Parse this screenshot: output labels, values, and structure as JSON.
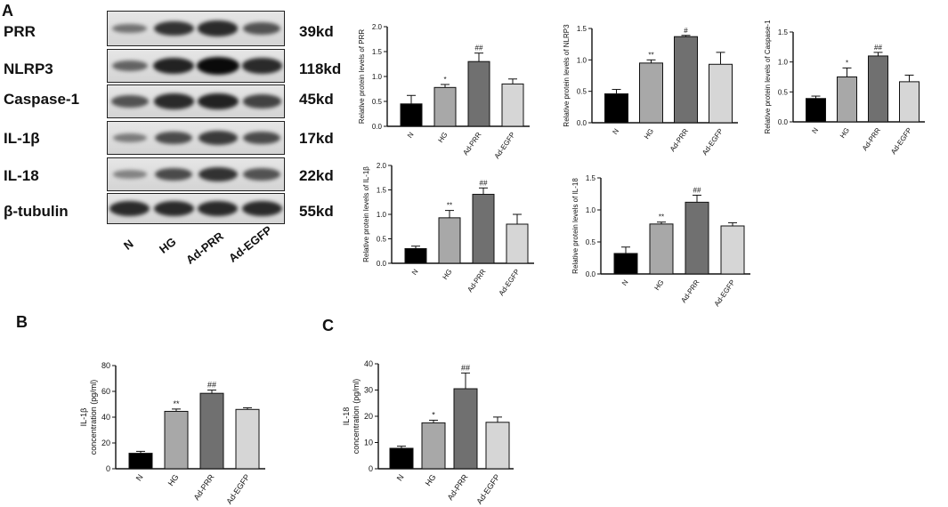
{
  "panels": {
    "a": "A",
    "b": "B",
    "c": "C"
  },
  "western_blot": {
    "proteins": [
      {
        "name": "PRR",
        "kd": "39kd",
        "bands": [
          0.35,
          0.75,
          0.8,
          0.55
        ]
      },
      {
        "name": "NLRP3",
        "kd": "118kd",
        "bands": [
          0.45,
          0.85,
          1.0,
          0.8
        ]
      },
      {
        "name": "Caspase-1",
        "kd": "45kd",
        "bands": [
          0.55,
          0.8,
          0.85,
          0.65
        ]
      },
      {
        "name": "IL-1β",
        "kd": "17kd",
        "bands": [
          0.3,
          0.6,
          0.7,
          0.6
        ]
      },
      {
        "name": "IL-18",
        "kd": "22kd",
        "bands": [
          0.25,
          0.6,
          0.75,
          0.55
        ]
      },
      {
        "name": "β-tubulin",
        "kd": "55kd",
        "bands": [
          0.8,
          0.8,
          0.8,
          0.8
        ]
      }
    ],
    "lanes": [
      "N",
      "HG",
      "Ad-PRR",
      "Ad-EGFP"
    ]
  },
  "colors": {
    "N": "#000000",
    "HG": "#a8a8a8",
    "Ad-PRR": "#707070",
    "Ad-EGFP": "#d6d6d6"
  },
  "chart_data": [
    {
      "id": "prr",
      "type": "bar",
      "categories": [
        "N",
        "HG",
        "Ad-PRR",
        "Ad-EGFP"
      ],
      "values": [
        0.45,
        0.78,
        1.3,
        0.85
      ],
      "errors": [
        0.17,
        0.06,
        0.17,
        0.1
      ],
      "annotations": [
        "",
        "*",
        "##",
        ""
      ],
      "ylabel": "Relative protein levels of PRR",
      "ylim": [
        0,
        2.0
      ],
      "yticks": [
        0.0,
        0.5,
        1.0,
        1.5,
        2.0
      ],
      "ytick_labels": [
        "0.0",
        "0.5",
        "1.0",
        "1.5",
        "2.0"
      ]
    },
    {
      "id": "nlrp3",
      "type": "bar",
      "categories": [
        "N",
        "HG",
        "Ad-PRR",
        "Ad-EGFP"
      ],
      "values": [
        0.46,
        0.95,
        1.37,
        0.93
      ],
      "errors": [
        0.07,
        0.05,
        0.02,
        0.19
      ],
      "annotations": [
        "",
        "**",
        "#",
        ""
      ],
      "ylabel": "Relative protein levels of NLRP3",
      "ylim": [
        0,
        1.5
      ],
      "yticks": [
        0.0,
        0.5,
        1.0,
        1.5
      ],
      "ytick_labels": [
        "0.0",
        "0.5",
        "1.0",
        "1.5"
      ]
    },
    {
      "id": "caspase1",
      "type": "bar",
      "categories": [
        "N",
        "HG",
        "Ad-PRR",
        "Ad-EGFP"
      ],
      "values": [
        0.39,
        0.75,
        1.1,
        0.67
      ],
      "errors": [
        0.04,
        0.15,
        0.06,
        0.11
      ],
      "annotations": [
        "",
        "*",
        "##",
        ""
      ],
      "ylabel": "Relative protein levels of Caspase-1",
      "ylim": [
        0,
        1.5
      ],
      "yticks": [
        0.0,
        0.5,
        1.0,
        1.5
      ],
      "ytick_labels": [
        "0.0",
        "0.5",
        "1.0",
        "1.5"
      ]
    },
    {
      "id": "il1b",
      "type": "bar",
      "categories": [
        "N",
        "HG",
        "Ad-PRR",
        "Ad-EGFP"
      ],
      "values": [
        0.3,
        0.93,
        1.41,
        0.8
      ],
      "errors": [
        0.05,
        0.15,
        0.13,
        0.2
      ],
      "annotations": [
        "",
        "**",
        "##",
        ""
      ],
      "ylabel": "Relative protein levels of IL-1β",
      "ylim": [
        0,
        2.0
      ],
      "yticks": [
        0.0,
        0.5,
        1.0,
        1.5,
        2.0
      ],
      "ytick_labels": [
        "0.0",
        "0.5",
        "1.0",
        "1.5",
        "2.0"
      ]
    },
    {
      "id": "il18",
      "type": "bar",
      "categories": [
        "N",
        "HG",
        "Ad-PRR",
        "Ad-EGFP"
      ],
      "values": [
        0.32,
        0.78,
        1.12,
        0.75
      ],
      "errors": [
        0.1,
        0.03,
        0.11,
        0.05
      ],
      "annotations": [
        "",
        "**",
        "##",
        ""
      ],
      "ylabel": "Relative protein levels of IL-18",
      "ylim": [
        0,
        1.5
      ],
      "yticks": [
        0.0,
        0.5,
        1.0,
        1.5
      ],
      "ytick_labels": [
        "0.0",
        "0.5",
        "1.0",
        "1.5"
      ]
    },
    {
      "id": "il1b_conc",
      "type": "bar",
      "categories": [
        "N",
        "HG",
        "Ad-PRR",
        "Ad-EGFP"
      ],
      "values": [
        12,
        44.5,
        58.5,
        46
      ],
      "errors": [
        1.5,
        1.8,
        2.5,
        1.3
      ],
      "annotations": [
        "",
        "**",
        "##",
        ""
      ],
      "ylabel_lines": [
        "IL-1β",
        "concentration (pg/ml)"
      ],
      "ylim": [
        0,
        80
      ],
      "yticks": [
        0,
        20,
        40,
        60,
        80
      ],
      "ytick_labels": [
        "0",
        "20",
        "40",
        "60",
        "80"
      ]
    },
    {
      "id": "il18_conc",
      "type": "bar",
      "categories": [
        "N",
        "HG",
        "Ad-PRR",
        "Ad-EGFP"
      ],
      "values": [
        7.8,
        17.5,
        30.5,
        17.7
      ],
      "errors": [
        0.8,
        1.0,
        6.0,
        2.0
      ],
      "annotations": [
        "",
        "*",
        "##",
        ""
      ],
      "ylabel_lines": [
        "IL-18",
        "concentration (pg/ml)"
      ],
      "ylim": [
        0,
        40
      ],
      "yticks": [
        0,
        10,
        20,
        30,
        40
      ],
      "ytick_labels": [
        "0",
        "10",
        "20",
        "30",
        "40"
      ]
    }
  ]
}
